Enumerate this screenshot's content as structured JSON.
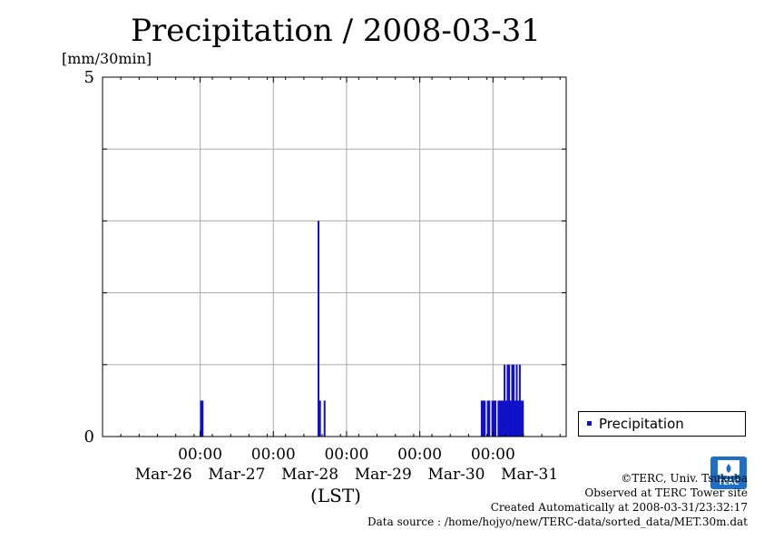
{
  "chart_data": {
    "type": "bar",
    "title": "Precipitation / 2008-03-31",
    "ylabel": "[mm/30min]",
    "xlabel": "(LST)",
    "ylim": [
      0,
      5
    ],
    "y_ticks": [
      "0",
      "5"
    ],
    "x_ticks": [
      {
        "time": "00:00",
        "date": "Mar-26"
      },
      {
        "time": "00:00",
        "date": "Mar-27"
      },
      {
        "time": "00:00",
        "date": "Mar-28"
      },
      {
        "time": "00:00",
        "date": "Mar-29"
      },
      {
        "time": "00:00",
        "date": "Mar-30"
      },
      {
        "time": "00:00",
        "date": "Mar-31"
      }
    ],
    "grid": true,
    "legend_position": "right",
    "series": [
      {
        "name": "Precipitation",
        "color": "#1010c8",
        "points": [
          {
            "t": "2008-03-27 00:30",
            "v": 0.5
          },
          {
            "t": "2008-03-27 01:00",
            "v": 0.5
          },
          {
            "t": "2008-03-28 15:00",
            "v": 3.0
          },
          {
            "t": "2008-03-28 15:30",
            "v": 0.5
          },
          {
            "t": "2008-03-28 17:00",
            "v": 0.5
          },
          {
            "t": "2008-03-30 20:30",
            "v": 0.5
          },
          {
            "t": "2008-03-30 21:00",
            "v": 0.5
          },
          {
            "t": "2008-03-30 21:30",
            "v": 0.5
          },
          {
            "t": "2008-03-30 22:30",
            "v": 0.5
          },
          {
            "t": "2008-03-30 23:00",
            "v": 0.5
          },
          {
            "t": "2008-03-31 00:00",
            "v": 0.5
          },
          {
            "t": "2008-03-31 00:30",
            "v": 0.5
          },
          {
            "t": "2008-03-31 01:00",
            "v": 0.5
          },
          {
            "t": "2008-03-31 02:00",
            "v": 0.5
          },
          {
            "t": "2008-03-31 02:30",
            "v": 0.5
          },
          {
            "t": "2008-03-31 03:00",
            "v": 0.5
          },
          {
            "t": "2008-03-31 03:30",
            "v": 0.5
          },
          {
            "t": "2008-03-31 04:00",
            "v": 1.0
          },
          {
            "t": "2008-03-31 04:30",
            "v": 0.5
          },
          {
            "t": "2008-03-31 05:00",
            "v": 1.0
          },
          {
            "t": "2008-03-31 05:30",
            "v": 1.0
          },
          {
            "t": "2008-03-31 06:00",
            "v": 0.5
          },
          {
            "t": "2008-03-31 06:30",
            "v": 1.0
          },
          {
            "t": "2008-03-31 07:00",
            "v": 1.0
          },
          {
            "t": "2008-03-31 07:30",
            "v": 0.5
          },
          {
            "t": "2008-03-31 08:00",
            "v": 1.0
          },
          {
            "t": "2008-03-31 08:30",
            "v": 0.5
          },
          {
            "t": "2008-03-31 09:00",
            "v": 1.0
          },
          {
            "t": "2008-03-31 09:30",
            "v": 0.5
          },
          {
            "t": "2008-03-31 10:00",
            "v": 0.5
          }
        ]
      }
    ]
  },
  "legend": {
    "label": "Precipitation"
  },
  "footer": {
    "copyright": "©TERC, Univ. Tsukuba",
    "observed": "Observed at TERC Tower site",
    "created": "Created Automatically at 2008-03-31/23:32:17",
    "source": "Data source : /home/hojyo/new/TERC-data/sorted_data/MET.30m.dat"
  },
  "logo": {
    "text": "TERC"
  }
}
